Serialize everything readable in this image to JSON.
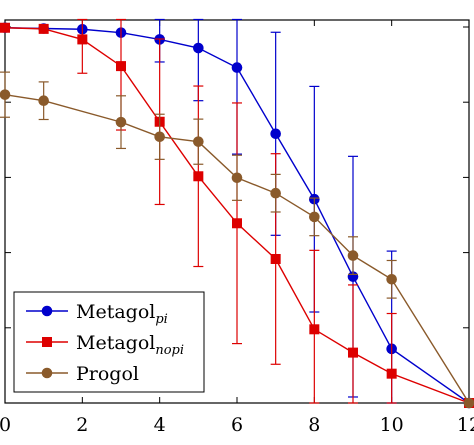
{
  "chart_data": {
    "type": "line",
    "title": "",
    "xlabel": "",
    "ylabel": "",
    "xlim": [
      0,
      12
    ],
    "ylim": [
      0,
      1
    ],
    "x_ticks": [
      0,
      2,
      4,
      6,
      8,
      10,
      12
    ],
    "x_tick_labels": [
      "0",
      "2",
      "4",
      "6",
      "8",
      "10",
      "12"
    ],
    "grid": false,
    "legend_position": "bottom-left",
    "series": [
      {
        "name": "Metagol",
        "name_subscript": "pi",
        "color": "#0000cc",
        "marker": "circle",
        "x": [
          0,
          1,
          2,
          3,
          4,
          5,
          6,
          7,
          8,
          9,
          10,
          12
        ],
        "y": [
          0.998,
          0.996,
          0.994,
          0.985,
          0.967,
          0.944,
          0.892,
          0.716,
          0.542,
          0.336,
          0.144,
          0.0
        ],
        "error": [
          0,
          0,
          0,
          0,
          0.06,
          0.14,
          0.23,
          0.27,
          0.3,
          0.32,
          0.26,
          0
        ]
      },
      {
        "name": "Metagol",
        "name_subscript": "nopi",
        "color": "#dd0000",
        "marker": "square",
        "x": [
          0,
          1,
          2,
          3,
          4,
          5,
          6,
          7,
          8,
          9,
          10,
          12
        ],
        "y": [
          0.998,
          0.995,
          0.967,
          0.896,
          0.748,
          0.603,
          0.478,
          0.383,
          0.196,
          0.134,
          0.078,
          0.0
        ],
        "error": [
          0,
          0,
          0.09,
          0.17,
          0.22,
          0.24,
          0.32,
          0.28,
          0.21,
          0.18,
          0.16,
          0
        ]
      },
      {
        "name": "Progol",
        "name_subscript": "",
        "color": "#8a5a2b",
        "marker": "circle",
        "x": [
          0,
          1,
          2,
          3,
          4,
          5,
          6,
          7,
          8,
          9,
          10,
          12
        ],
        "y": [
          0.82,
          0.804,
          null,
          0.747,
          0.708,
          0.695,
          0.599,
          0.558,
          0.495,
          0.392,
          0.329,
          0.0
        ],
        "error": [
          0.06,
          0.05,
          0,
          0.07,
          0.06,
          0.06,
          0.06,
          0.05,
          0.05,
          0.05,
          0.05,
          0
        ]
      }
    ]
  }
}
